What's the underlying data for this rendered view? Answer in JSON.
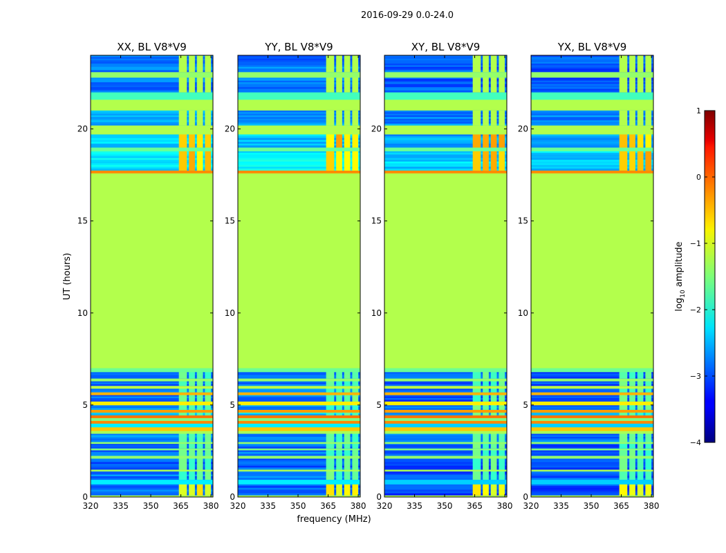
{
  "figure": {
    "suptitle": "2016-09-29 0.0-24.0"
  },
  "chart_data": {
    "type": "heatmap",
    "title": "2016-09-29 0.0-24.0",
    "xlabel": "frequency (MHz)",
    "ylabel": "UT (hours)",
    "xlim": [
      320,
      381
    ],
    "ylim": [
      0,
      24
    ],
    "xticks": [
      320,
      335,
      350,
      365,
      380
    ],
    "yticks": [
      0,
      5,
      10,
      15,
      20
    ],
    "panels": [
      {
        "name": "xx",
        "title": "XX, BL V8*V9"
      },
      {
        "name": "yy",
        "title": "YY, BL V8*V9"
      },
      {
        "name": "xy",
        "title": "XY, BL V8*V9"
      },
      {
        "name": "yx",
        "title": "YX, BL V8*V9"
      }
    ],
    "colorbar": {
      "label_prefix": "log",
      "label_sub": "10",
      "label_suffix": " amplitude",
      "range": [
        -4,
        1
      ],
      "ticks": [
        {
          "value": 1,
          "label": "1"
        },
        {
          "value": 0,
          "label": "0"
        },
        {
          "value": -1,
          "label": "−1"
        },
        {
          "value": -2,
          "label": "−2"
        },
        {
          "value": -3,
          "label": "−3"
        },
        {
          "value": -4,
          "label": "−4"
        }
      ],
      "colormap": "jet"
    },
    "background_level": -1.25,
    "flagged_band": {
      "ut_start": 7.0,
      "ut_end": 17.6,
      "level": -1.25
    },
    "rfi_channels_mhz": [
      [
        364,
        368
      ],
      [
        369,
        372
      ],
      [
        373,
        376
      ],
      [
        377,
        380
      ]
    ]
  }
}
